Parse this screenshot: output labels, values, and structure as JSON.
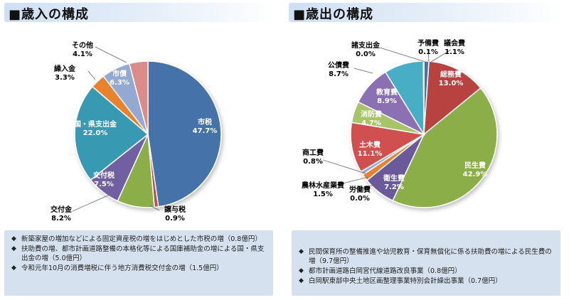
{
  "left": {
    "title": "■歳入の構成",
    "notes": [
      "新築家屋の増加などによる固定資産税の増をはじめとした市税の増（0.8億円）",
      "扶助費の増、都市計画道路整備の本格化等による国庫補助金の増による国・県支出金の増（5.0億円）",
      "令和元年10月の消費増税に伴う地方消費税交付金の増（1.5億円）"
    ]
  },
  "right": {
    "title": "■歳出の構成",
    "notes": [
      "民間保育所の整備推進や幼児教育・保育無償化に係る扶助費の増による民生費の増（9.7億円）",
      "都市計画道路白岡宮代線道路改良事業（0.8億円）",
      "白岡駅東部中央土地区画整理事業特別会計繰出事業（0.7億円）"
    ]
  },
  "bullet_icon": "diamond-bullet-icon",
  "chart_data": [
    {
      "type": "pie",
      "title": "歳入の構成",
      "start": "12 o'clock",
      "direction": "clockwise",
      "slices": [
        {
          "label": "市税",
          "value": 47.7,
          "display": "47.7%",
          "color": "#4472a8"
        },
        {
          "label": "譲与税",
          "value": 0.9,
          "display": "0.9%",
          "color": "#c0504d"
        },
        {
          "label": "交付金",
          "value": 8.2,
          "display": "8.2%",
          "color": "#8cae4a"
        },
        {
          "label": "交付税",
          "value": 7.5,
          "display": "7.5%",
          "color": "#7161a1"
        },
        {
          "label": "国・県支出金",
          "value": 22.0,
          "display": "22.0%",
          "color": "#3799b3"
        },
        {
          "label": "繰入金",
          "value": 3.3,
          "display": "3.3%",
          "color": "#e8822e"
        },
        {
          "label": "市債",
          "value": 6.3,
          "display": "6.3%",
          "color": "#93a9d2"
        },
        {
          "label": "その他",
          "value": 4.1,
          "display": "4.1%",
          "color": "#dc8b8b"
        }
      ]
    },
    {
      "type": "pie",
      "title": "歳出の構成",
      "start": "12 o'clock",
      "direction": "clockwise",
      "slices": [
        {
          "label": "議会費",
          "value": 1.1,
          "display": "1.1%",
          "color": "#4472a8"
        },
        {
          "label": "総務費",
          "value": 13.0,
          "display": "13.0%",
          "color": "#b84340"
        },
        {
          "label": "民生費",
          "value": 42.9,
          "display": "42.9%",
          "color": "#8cae4a"
        },
        {
          "label": "衛生費",
          "value": 7.2,
          "display": "7.2%",
          "color": "#6b5a9c"
        },
        {
          "label": "労働費",
          "value": 0.0,
          "display": "0.0%",
          "color": "#3799b3"
        },
        {
          "label": "農林水産業費",
          "value": 1.5,
          "display": "1.5%",
          "color": "#e8822e"
        },
        {
          "label": "商工費",
          "value": 0.8,
          "display": "0.8%",
          "color": "#93a9d2"
        },
        {
          "label": "土木費",
          "value": 11.1,
          "display": "11.1%",
          "color": "#d04f4f"
        },
        {
          "label": "消防費",
          "value": 4.7,
          "display": "4.7%",
          "color": "#a8c46a"
        },
        {
          "label": "教育費",
          "value": 8.9,
          "display": "8.9%",
          "color": "#8b6fb3"
        },
        {
          "label": "公債費",
          "value": 8.7,
          "display": "8.7%",
          "color": "#46aec6"
        },
        {
          "label": "諸支出金",
          "value": 0.0,
          "display": "0.0%",
          "color": "#f2a35e"
        },
        {
          "label": "予備費",
          "value": 0.1,
          "display": "0.1%",
          "color": "#b7c6e0"
        }
      ]
    }
  ]
}
